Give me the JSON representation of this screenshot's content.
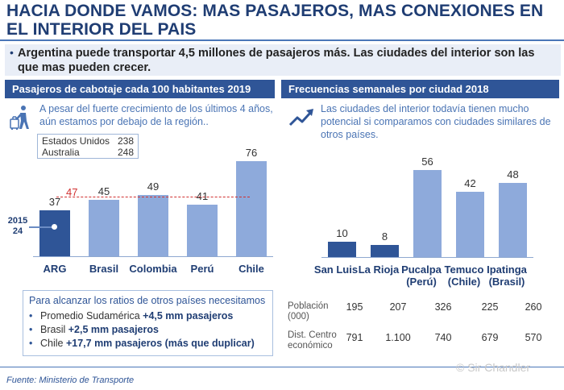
{
  "title": "HACIA DONDE VAMOS: MAS PASAJEROS, MAS CONEXIONES EN EL INTERIOR DEL PAIS",
  "bullet": "Argentina puede transportar 4,5 millones de pasajeros más. Las ciudades del interior son las que mas pueden crecer.",
  "left_panel": {
    "header": "Pasajeros de cabotaje cada 100 habitantes 2019",
    "icon": "traveler-luggage-icon",
    "description": "A pesar del fuerte crecimiento de los últimos 4 años, aún estamos por debajo de la región..",
    "reference": [
      {
        "name": "Estados Unidos",
        "value": "238"
      },
      {
        "name": "Australia",
        "value": "248"
      }
    ],
    "average_label": "47",
    "year_label": "2015",
    "year_value": "24",
    "info_box": {
      "title": "Para alcanzar los ratios de otros países necesitamos",
      "items": [
        {
          "prefix": "Promedio Sudamérica ",
          "bold": "+4,5 mm pasajeros"
        },
        {
          "prefix": "Brasil ",
          "bold": "+2,5 mm pasajeros"
        },
        {
          "prefix": "Chile ",
          "bold": "+17,7 mm pasajeros (más que duplicar)"
        }
      ]
    }
  },
  "right_panel": {
    "header": "Frecuencias semanales por ciudad 2018",
    "icon": "trend-up-icon",
    "description": "Las ciudades del interior todavía tienen mucho potencial si comparamos con ciudades similares de otros países.",
    "table": {
      "rows": [
        {
          "label": "Población (000)",
          "values": [
            "195",
            "207",
            "326",
            "225",
            "260"
          ]
        },
        {
          "label": "Dist. Centro económico",
          "values": [
            "791",
            "1.100",
            "740",
            "679",
            "570"
          ]
        }
      ]
    }
  },
  "source": "Fuente: Ministerio de Transporte",
  "watermark": "© Sir Chandler",
  "colors": {
    "dark_blue": "#2f5597",
    "light_blue": "#8eaadb",
    "navy_text": "#1f3d73",
    "red": "#d03030"
  },
  "chart_data": [
    {
      "type": "bar",
      "title": "Pasajeros de cabotaje cada 100 habitantes 2019",
      "categories": [
        "ARG",
        "Brasil",
        "Colombia",
        "Perú",
        "Chile"
      ],
      "values": [
        37,
        45,
        49,
        41,
        76
      ],
      "highlight": [
        "ARG"
      ],
      "reference_line": {
        "label": "47",
        "value": 47
      },
      "annotation": {
        "label": "2015",
        "value": 24
      },
      "ylim": [
        0,
        80
      ]
    },
    {
      "type": "bar",
      "title": "Frecuencias semanales por ciudad 2018",
      "categories": [
        "San Luis",
        "La Rioja",
        "Pucalpa (Perú)",
        "Temuco (Chile)",
        "Ipatinga (Brasil)"
      ],
      "values": [
        10,
        8,
        56,
        42,
        48
      ],
      "highlight": [
        "San Luis",
        "La Rioja"
      ],
      "ylim": [
        0,
        60
      ]
    }
  ]
}
